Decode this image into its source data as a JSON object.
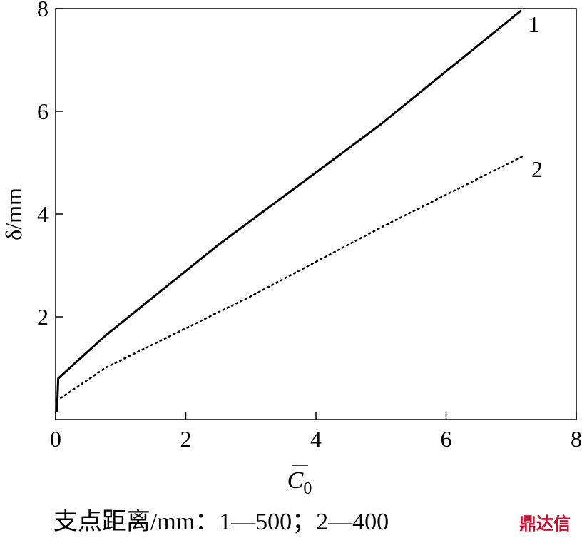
{
  "chart_data": {
    "type": "line",
    "y_label": "δ/mm",
    "x_label": "C",
    "x_label_sub": "0",
    "caption": "支点距离/mm：1—500；2—400",
    "watermark": "鼎达信",
    "xlim": [
      0,
      8
    ],
    "xticks": [
      0,
      2,
      4,
      6,
      8
    ],
    "ylim": [
      0,
      8
    ],
    "yticks": [
      2,
      4,
      6,
      8
    ],
    "series": [
      {
        "name": "1",
        "color": "#000000",
        "style": "solid",
        "x": [
          0.02,
          0.04,
          0.77,
          2.5,
          5.0,
          7.15
        ],
        "values": [
          0.14,
          0.8,
          1.64,
          3.4,
          5.75,
          7.96
        ]
      },
      {
        "name": "2",
        "color": "#000000",
        "style": "dotted",
        "x": [
          0.08,
          0.77,
          3.0,
          5.0,
          7.2
        ],
        "values": [
          0.42,
          1.01,
          2.4,
          3.74,
          5.14
        ]
      }
    ]
  }
}
